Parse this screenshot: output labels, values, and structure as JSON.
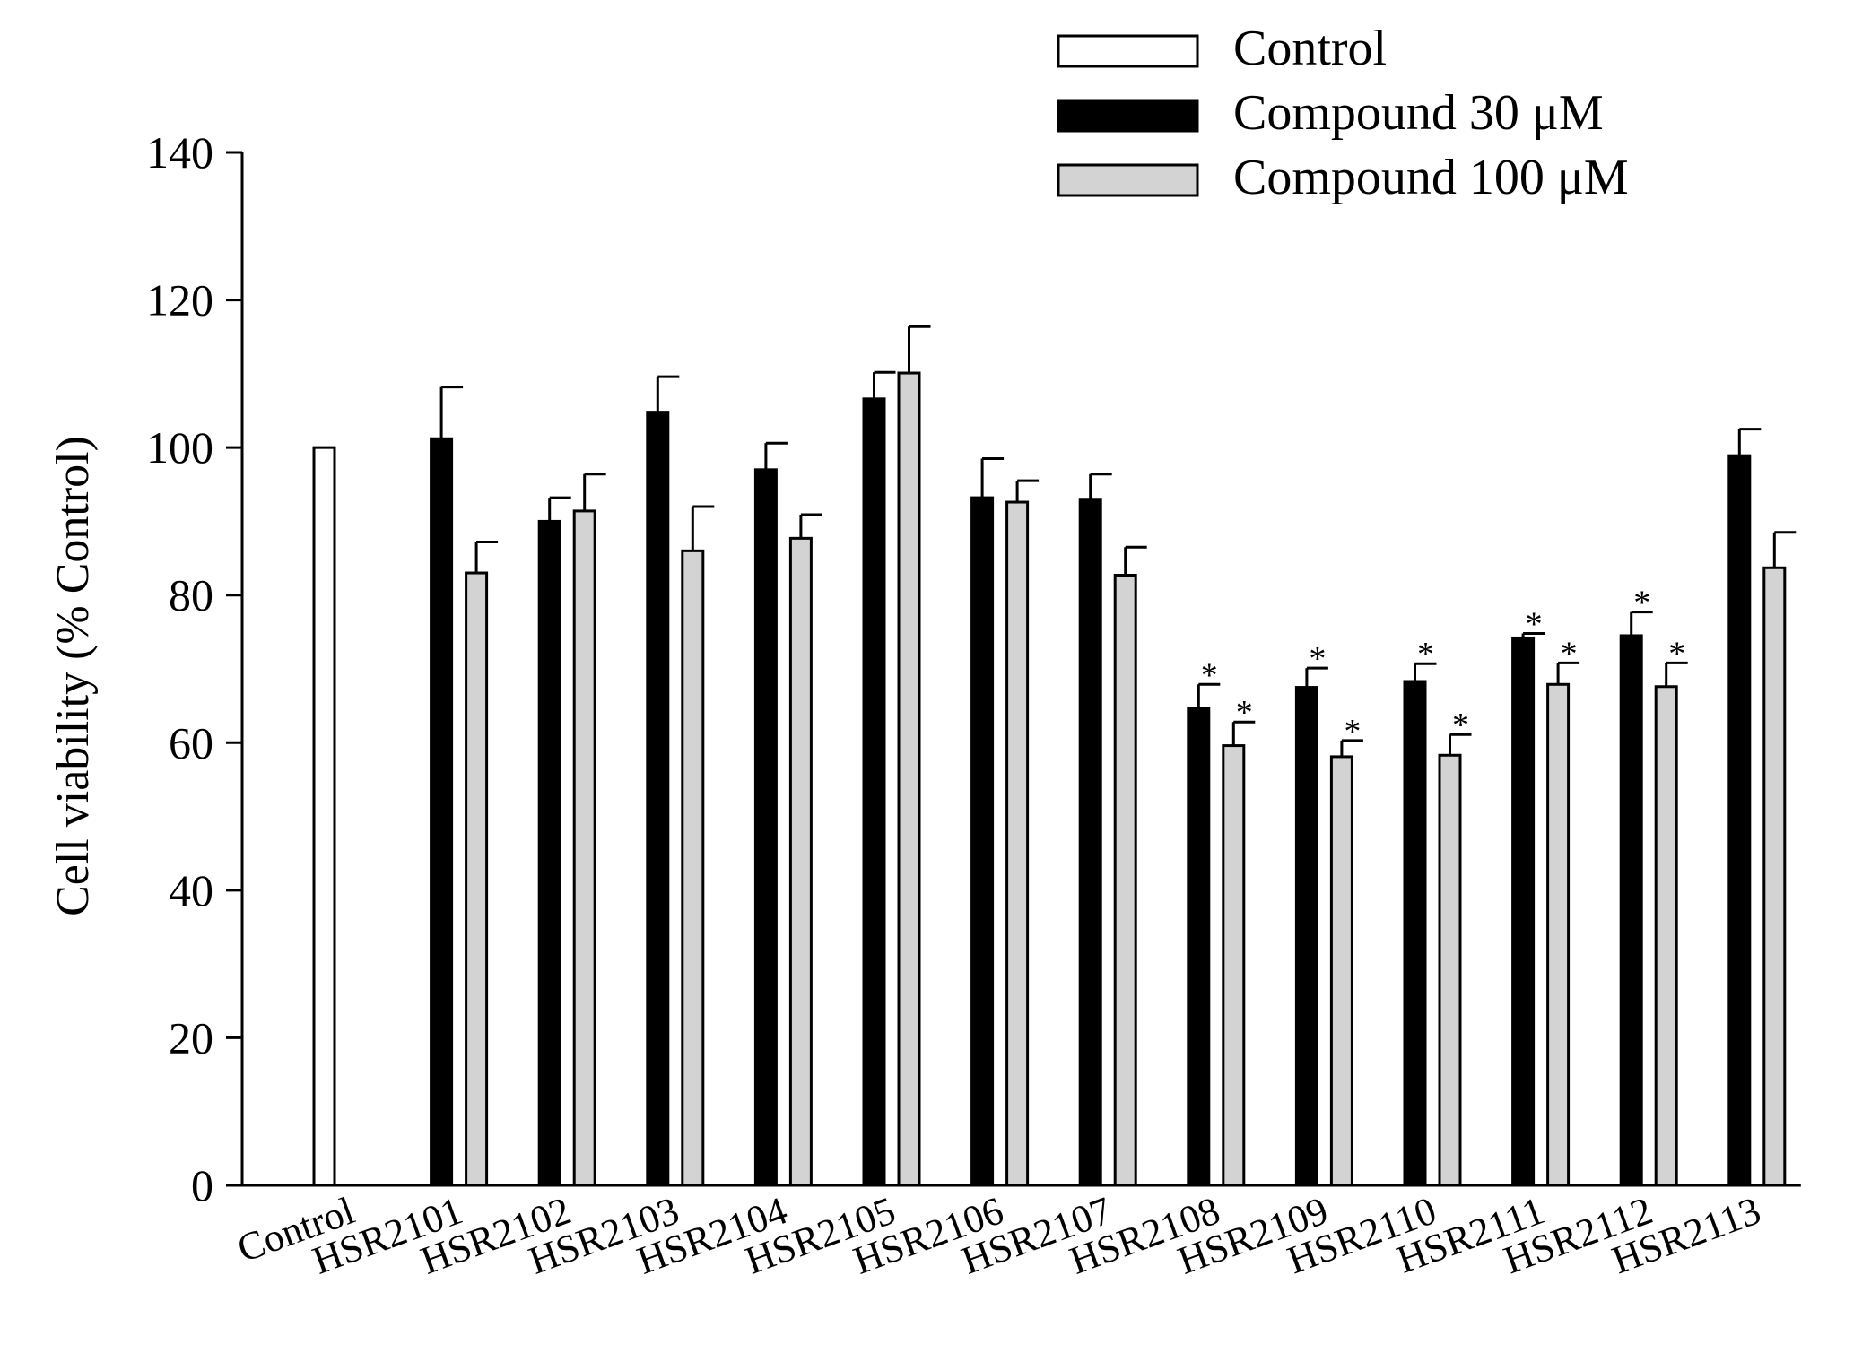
{
  "chart_data": {
    "type": "bar",
    "title": "",
    "xlabel": "",
    "ylabel": "Cell viability (% Control)",
    "ylim": [
      0,
      140
    ],
    "yticks": [
      0,
      20,
      40,
      60,
      80,
      100,
      120,
      140
    ],
    "grid": false,
    "legend_position": "top-right",
    "categories": [
      "Control",
      "HSR2101",
      "HSR2102",
      "HSR2103",
      "HSR2104",
      "HSR2105",
      "HSR2106",
      "HSR2107",
      "HSR2108",
      "HSR2109",
      "HSR2110",
      "HSR2111",
      "HSR2112",
      "HSR2113"
    ],
    "series": [
      {
        "name": "Control",
        "color": "#ffffff",
        "values": [
          100,
          null,
          null,
          null,
          null,
          null,
          null,
          null,
          null,
          null,
          null,
          null,
          null,
          null
        ],
        "errors": [
          0,
          null,
          null,
          null,
          null,
          null,
          null,
          null,
          null,
          null,
          null,
          null,
          null,
          null
        ],
        "significant": [
          false,
          false,
          false,
          false,
          false,
          false,
          false,
          false,
          false,
          false,
          false,
          false,
          false,
          false
        ]
      },
      {
        "name": "Compound 30 μM",
        "color": "#000000",
        "values": [
          null,
          101.2,
          90,
          104.8,
          97,
          106.6,
          93.2,
          93,
          64.7,
          67.5,
          68.3,
          74.2,
          74.5,
          98.9
        ],
        "errors": [
          null,
          7,
          3.2,
          4.8,
          3.6,
          3.6,
          5.3,
          3.4,
          3.2,
          2.6,
          2.4,
          0.6,
          3.2,
          3.6
        ],
        "significant": [
          false,
          false,
          false,
          false,
          false,
          false,
          false,
          false,
          true,
          true,
          true,
          true,
          true,
          false
        ]
      },
      {
        "name": "Compound 100 μM",
        "color": "#d3d3d3",
        "values": [
          null,
          83,
          91.4,
          86,
          87.7,
          110.1,
          92.6,
          82.7,
          59.6,
          58.1,
          58.3,
          67.9,
          67.6,
          83.7
        ],
        "errors": [
          null,
          4.2,
          5,
          6,
          3.2,
          6.3,
          2.9,
          3.8,
          3.2,
          2.2,
          2.8,
          2.9,
          3.2,
          4.8
        ],
        "significant": [
          false,
          false,
          false,
          false,
          false,
          false,
          false,
          false,
          true,
          true,
          true,
          true,
          true,
          false
        ]
      }
    ],
    "significance_marker": "*"
  }
}
